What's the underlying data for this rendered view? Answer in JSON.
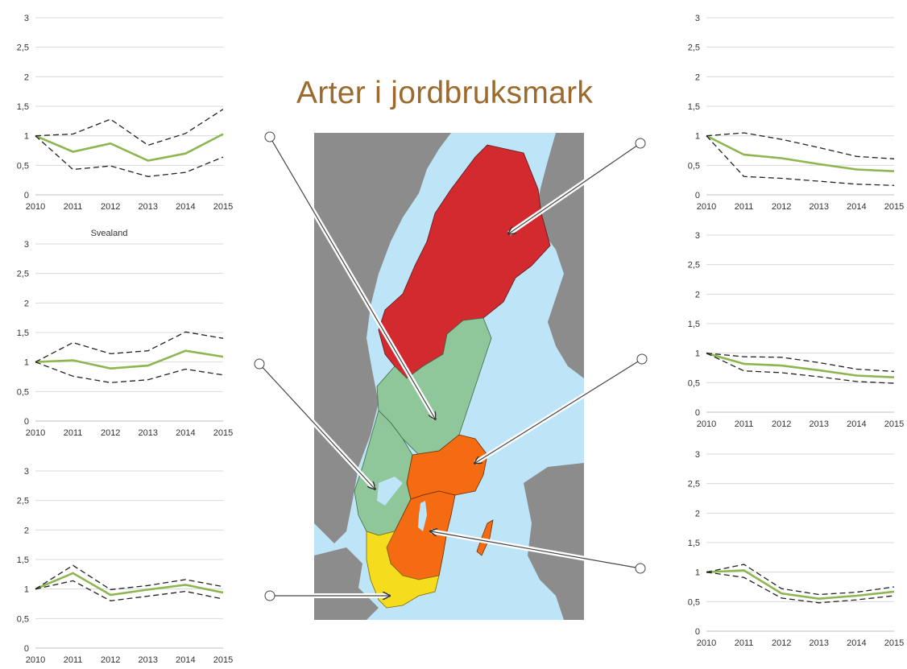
{
  "title": "Arter i jordbruksmark",
  "title_color": "#9C6A2C",
  "colors": {
    "water": "#BEE4F7",
    "land_outside": "#8C8C8C",
    "region_north": "#D22A2E",
    "region_green": "#8FC79A",
    "region_orange": "#F46B12",
    "region_yellow": "#F5DC1C",
    "median_line": "#8DB650",
    "interval_line": "#222222",
    "gridline": "#D9D9D9"
  },
  "chart_data": [
    {
      "type": "line",
      "categories": [
        "2010",
        "2011",
        "2012",
        "2013",
        "2014",
        "2015"
      ],
      "ylim": [
        0,
        3
      ],
      "yticks": [
        "0",
        "0,5",
        "1",
        "1,5",
        "2",
        "2,5",
        "3"
      ],
      "series": [
        {
          "values": [
            1,
            0.73,
            0.87,
            0.58,
            0.7,
            1.03
          ],
          "style": "solid"
        },
        {
          "values": [
            1,
            1.03,
            1.28,
            0.84,
            1.04,
            1.45
          ],
          "style": "dashed"
        },
        {
          "values": [
            1,
            0.43,
            0.49,
            0.31,
            0.38,
            0.64
          ],
          "style": "dashed"
        }
      ],
      "title": "",
      "xlabel": "",
      "ylabel": "",
      "grid": true
    },
    {
      "type": "line",
      "title": "Svealand",
      "categories": [
        "2010",
        "2011",
        "2012",
        "2013",
        "2014",
        "2015"
      ],
      "ylim": [
        0,
        3
      ],
      "yticks": [
        "0",
        "0,5",
        "1",
        "1,5",
        "2",
        "2,5",
        "3"
      ],
      "series": [
        {
          "values": [
            1,
            1.03,
            0.89,
            0.94,
            1.19,
            1.09
          ],
          "style": "solid"
        },
        {
          "values": [
            1,
            1.33,
            1.14,
            1.19,
            1.51,
            1.4
          ],
          "style": "dashed"
        },
        {
          "values": [
            1,
            0.76,
            0.65,
            0.7,
            0.88,
            0.78
          ],
          "style": "dashed"
        }
      ],
      "xlabel": "",
      "ylabel": "",
      "grid": true
    },
    {
      "type": "line",
      "categories": [
        "2010",
        "2011",
        "2012",
        "2013",
        "2014",
        "2015"
      ],
      "ylim": [
        0,
        3
      ],
      "yticks": [
        "0",
        "0,5",
        "1",
        "1,5",
        "2",
        "2,5",
        "3"
      ],
      "series": [
        {
          "values": [
            1,
            1.27,
            0.9,
            0.99,
            1.07,
            0.94
          ],
          "style": "solid"
        },
        {
          "values": [
            1,
            1.4,
            0.99,
            1.06,
            1.16,
            1.04
          ],
          "style": "dashed"
        },
        {
          "values": [
            1,
            1.14,
            0.8,
            0.88,
            0.96,
            0.83
          ],
          "style": "dashed"
        }
      ],
      "title": "",
      "xlabel": "",
      "ylabel": "",
      "grid": true
    },
    {
      "type": "line",
      "categories": [
        "2010",
        "2011",
        "2012",
        "2013",
        "2014",
        "2015"
      ],
      "ylim": [
        0,
        3
      ],
      "yticks": [
        "0",
        "0,5",
        "1",
        "1,5",
        "2",
        "2,5",
        "3"
      ],
      "series": [
        {
          "values": [
            1,
            0.68,
            0.62,
            0.52,
            0.43,
            0.4
          ],
          "style": "solid"
        },
        {
          "values": [
            1,
            1.05,
            0.94,
            0.8,
            0.65,
            0.61
          ],
          "style": "dashed"
        },
        {
          "values": [
            1,
            0.31,
            0.28,
            0.23,
            0.18,
            0.16
          ],
          "style": "dashed"
        }
      ],
      "title": "",
      "xlabel": "",
      "ylabel": "",
      "grid": true
    },
    {
      "type": "line",
      "categories": [
        "2010",
        "2011",
        "2012",
        "2013",
        "2014",
        "2015"
      ],
      "ylim": [
        0,
        3
      ],
      "yticks": [
        "0",
        "0,5",
        "1",
        "1,5",
        "2",
        "2,5",
        "3"
      ],
      "series": [
        {
          "values": [
            1,
            0.82,
            0.79,
            0.71,
            0.62,
            0.59
          ],
          "style": "solid"
        },
        {
          "values": [
            1,
            0.94,
            0.93,
            0.84,
            0.73,
            0.69
          ],
          "style": "dashed"
        },
        {
          "values": [
            1,
            0.7,
            0.67,
            0.6,
            0.52,
            0.49
          ],
          "style": "dashed"
        }
      ],
      "title": "",
      "xlabel": "",
      "ylabel": "",
      "grid": true
    },
    {
      "type": "line",
      "categories": [
        "2010",
        "2011",
        "2012",
        "2013",
        "2014",
        "2015"
      ],
      "ylim": [
        0,
        3
      ],
      "yticks": [
        "0",
        "0,5",
        "1",
        "1,5",
        "2",
        "2,5",
        "3"
      ],
      "series": [
        {
          "values": [
            1,
            1.03,
            0.64,
            0.55,
            0.6,
            0.67
          ],
          "style": "solid"
        },
        {
          "values": [
            1,
            1.13,
            0.72,
            0.62,
            0.66,
            0.75
          ],
          "style": "dashed"
        },
        {
          "values": [
            1,
            0.91,
            0.56,
            0.48,
            0.53,
            0.6
          ],
          "style": "dashed"
        }
      ],
      "title": "",
      "xlabel": "",
      "ylabel": "",
      "grid": true
    }
  ]
}
